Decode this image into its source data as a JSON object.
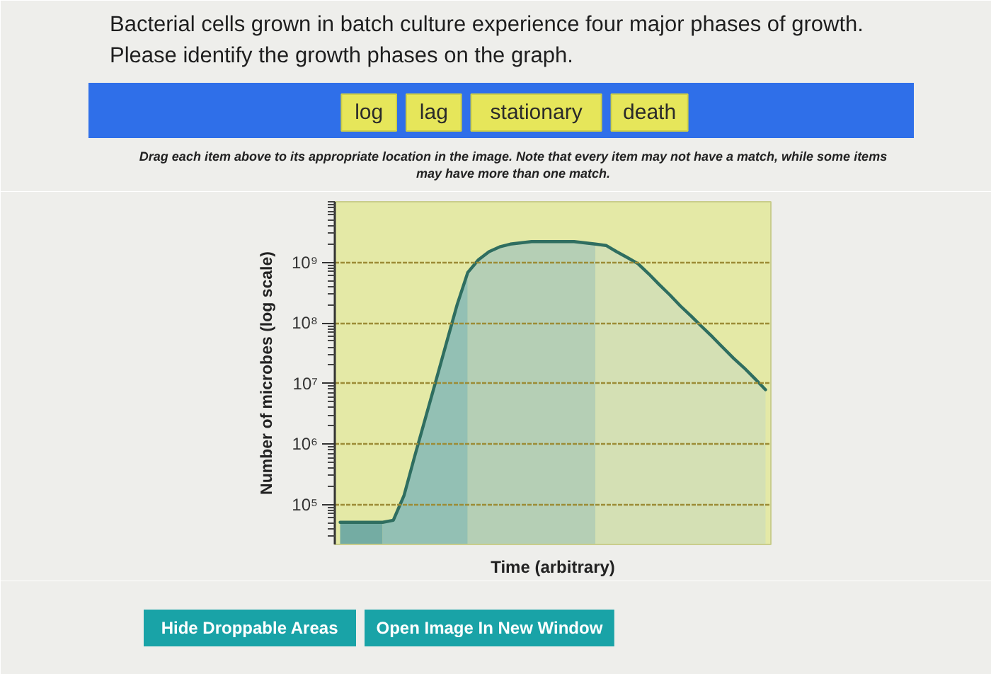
{
  "chart_data": {
    "type": "area",
    "title": "Bacterial cells grown in batch culture experience four major phases of growth. Please identify the growth phases on the graph.",
    "subtitle": "Drag each item above to its appropriate location in the image. Note that every item may not have a match, while some items may have more than one match.",
    "xlabel": "Time (arbitrary)",
    "ylabel": "Number of microbes (log scale)",
    "annotations": [
      "log",
      "lag",
      "stationary",
      "death",
      "Hide Droppable Areas",
      "Open Image In New Window"
    ],
    "categories": [
      null,
      null,
      null,
      null,
      null,
      null,
      null,
      null,
      null,
      null,
      null,
      null,
      null,
      null,
      null,
      null,
      null,
      null,
      null,
      null,
      null,
      null,
      null,
      null,
      null,
      null,
      null,
      null,
      null,
      null,
      null,
      null,
      null,
      null,
      null,
      null,
      null,
      null,
      null,
      null,
      null
    ],
    "series": [
      {
        "color": "#74aca3",
        "values": [
          51000,
          51000,
          51000,
          51000,
          51000,
          null,
          null,
          null,
          null,
          null,
          null,
          null,
          null,
          null,
          null,
          null,
          null,
          null,
          null,
          null,
          null,
          null,
          null,
          null,
          null,
          null,
          null,
          null,
          null,
          null,
          null,
          null,
          null,
          null,
          null,
          null,
          null,
          null,
          null,
          null,
          null
        ]
      },
      {
        "color": "#93c0b4",
        "values": [
          null,
          null,
          null,
          null,
          51000,
          55000,
          140000,
          620000,
          2600000,
          11000000,
          47000000,
          200000000,
          680000000,
          null,
          null,
          null,
          null,
          null,
          null,
          null,
          null,
          null,
          null,
          null,
          null,
          null,
          null,
          null,
          null,
          null,
          null,
          null,
          null,
          null,
          null,
          null,
          null,
          null,
          null,
          null,
          null
        ]
      },
      {
        "color": "#b5cfb5",
        "values": [
          null,
          null,
          null,
          null,
          null,
          null,
          null,
          null,
          null,
          null,
          null,
          null,
          680000000,
          1100000000,
          1500000000,
          1800000000,
          2000000000,
          2100000000,
          2200000000,
          2200000000,
          2200000000,
          2200000000,
          2200000000,
          2100000000,
          2000000000,
          null,
          null,
          null,
          null,
          null,
          null,
          null,
          null,
          null,
          null,
          null,
          null,
          null,
          null,
          null,
          null
        ]
      },
      {
        "color": "#d4e0b4",
        "values": [
          null,
          null,
          null,
          null,
          null,
          null,
          null,
          null,
          null,
          null,
          null,
          null,
          null,
          null,
          null,
          null,
          null,
          null,
          null,
          null,
          null,
          null,
          null,
          null,
          2000000000,
          1900000000,
          1500000000,
          1200000000,
          950000000,
          650000000,
          430000000,
          290000000,
          190000000,
          130000000,
          87000000,
          59000000,
          39000000,
          26000000,
          18000000,
          12000000,
          7900000
        ]
      },
      {
        "type": "line",
        "color": "#2f6e60",
        "values": [
          51000,
          51000,
          51000,
          51000,
          51000,
          55000,
          140000,
          620000,
          2600000,
          11000000,
          47000000,
          200000000,
          680000000,
          1100000000,
          1500000000,
          1800000000,
          2000000000,
          2100000000,
          2200000000,
          2200000000,
          2200000000,
          2200000000,
          2200000000,
          2100000000,
          2000000000,
          1900000000,
          1500000000,
          1200000000,
          950000000,
          650000000,
          430000000,
          290000000,
          190000000,
          130000000,
          87000000,
          59000000,
          39000000,
          26000000,
          18000000,
          12000000,
          7900000
        ]
      }
    ],
    "ylim": [
      22000,
      10000000000
    ],
    "yticks": [
      {
        "value": 100000,
        "label": "10⁵"
      },
      {
        "value": 1000000,
        "label": "10⁶"
      },
      {
        "value": 10000000,
        "label": "10⁷"
      },
      {
        "value": 100000000,
        "label": "10⁸"
      },
      {
        "value": 1000000000,
        "label": "10⁹"
      }
    ],
    "log": true,
    "grid": "y",
    "tick_labels": "y",
    "line_style": "solid"
  }
}
